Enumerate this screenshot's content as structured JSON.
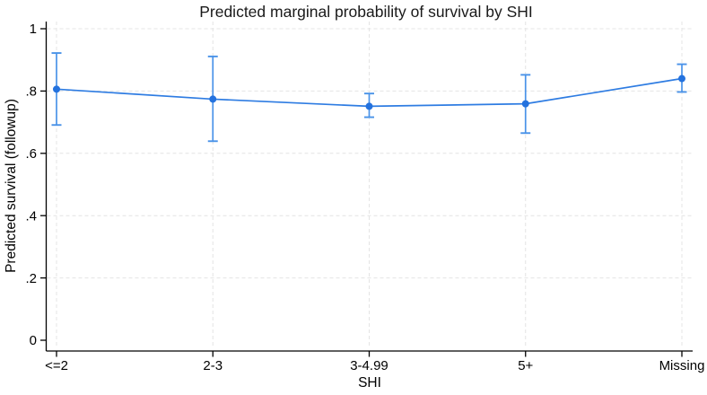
{
  "chart_data": {
    "type": "line",
    "title": "Predicted marginal probability of survival by SHI",
    "xlabel": "SHI",
    "ylabel": "Predicted survival (followup)",
    "categories": [
      "<=2",
      "2-3",
      "3-4.99",
      "5+",
      "Missing"
    ],
    "series": [
      {
        "values": [
          0.806,
          0.774,
          0.751,
          0.759,
          0.84
        ],
        "ci_low": [
          0.691,
          0.639,
          0.716,
          0.665,
          0.797
        ],
        "ci_high": [
          0.922,
          0.911,
          0.792,
          0.852,
          0.886
        ]
      }
    ],
    "ylim": [
      0,
      1
    ],
    "yticks": [
      0,
      0.2,
      0.4,
      0.6,
      0.8,
      1
    ],
    "ytick_labels": [
      "0",
      ".2",
      ".4",
      ".6",
      ".8",
      "1"
    ],
    "grid": {
      "horizontal": true,
      "vertical": true,
      "style": "dashed",
      "horizontal_at": [
        0.2,
        0.4,
        0.6,
        0.8,
        1
      ]
    },
    "legend": "none",
    "marker": "filled-circle",
    "error_bars": "capped vertical 95% CI"
  },
  "colors": {
    "line": "#2e7ce2",
    "marker": "#2472de",
    "ci": "#4a93e8",
    "grid": "#e4e4e4",
    "axis": "#000000",
    "text": "#000000",
    "background": "#ffffff"
  }
}
